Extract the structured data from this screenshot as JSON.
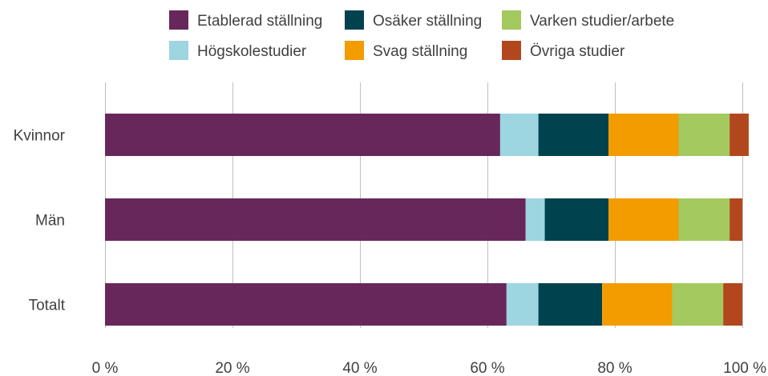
{
  "chart_data": {
    "type": "bar",
    "orientation": "horizontal",
    "stacked": true,
    "categories": [
      "Kvinnor",
      "Män",
      "Totalt"
    ],
    "series": [
      {
        "name": "Etablerad ställning",
        "color": "#68275a",
        "values": [
          62,
          66,
          63
        ]
      },
      {
        "name": "Högskolestudier",
        "color": "#9dd5e0",
        "values": [
          6,
          3,
          5
        ]
      },
      {
        "name": "Osäker ställning",
        "color": "#00424e",
        "values": [
          11,
          10,
          10
        ]
      },
      {
        "name": "Svag ställning",
        "color": "#f39c00",
        "values": [
          11,
          11,
          11
        ]
      },
      {
        "name": "Varken studier/arbete",
        "color": "#a3c95f",
        "values": [
          8,
          8,
          8
        ]
      },
      {
        "name": "Övriga studier",
        "color": "#b2471d",
        "values": [
          3,
          2,
          3
        ]
      }
    ],
    "xlim": [
      0,
      100
    ],
    "xticks": [
      "0 %",
      "20 %",
      "40 %",
      "60 %",
      "80 %",
      "100 %"
    ],
    "grid": true,
    "legend_position": "top"
  }
}
